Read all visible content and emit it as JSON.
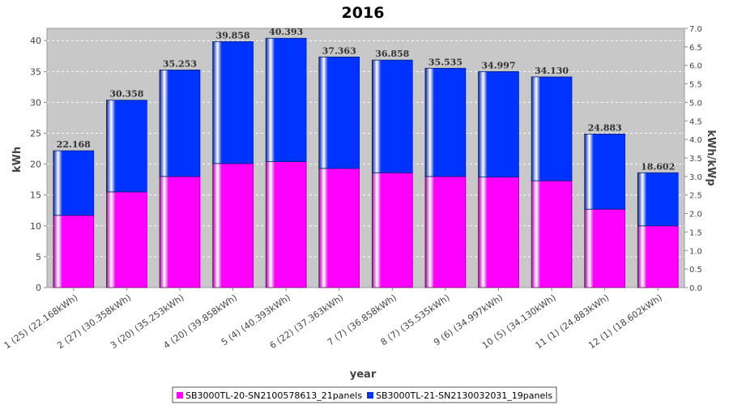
{
  "chart_data": {
    "type": "bar",
    "stacked": true,
    "title": "2016",
    "xlabel": "year",
    "ylabel": "kWh",
    "y2label": "kWh/kWp",
    "ylim": [
      0,
      42
    ],
    "y2lim": [
      0,
      7.0
    ],
    "yticks": [
      0,
      5,
      10,
      15,
      20,
      25,
      30,
      35,
      40
    ],
    "y2ticks": [
      "0.0",
      "0.5",
      "1.0",
      "1.5",
      "2.0",
      "2.5",
      "3.0",
      "3.5",
      "4.0",
      "4.5",
      "5.0",
      "5.5",
      "6.0",
      "6.5",
      "7.0"
    ],
    "grid": true,
    "legend_position": "bottom",
    "categories": [
      "1 (25)  (22.168kWh)",
      "2 (27)  (30.358kWh)",
      "3 (20)  (35.253kWh)",
      "4 (20)  (39.858kWh)",
      "5 (4)  (40.393kWh)",
      "6 (22)  (37.363kWh)",
      "7 (7)  (36.858kWh)",
      "8 (7)  (35.535kWh)",
      "9 (6)  (34.997kWh)",
      "10 (5)  (34.130kWh)",
      "11 (1)  (24.883kWh)",
      "12 (1)  (18.602kWh)"
    ],
    "series": [
      {
        "name": "SB3000TL-20-SN2100578613_21panels",
        "color": "#ff00ff",
        "values": [
          11.7,
          15.5,
          18.0,
          20.1,
          20.4,
          19.3,
          18.6,
          18.0,
          17.9,
          17.3,
          12.7,
          10.0
        ]
      },
      {
        "name": "SB3000TL-21-SN2130032031_19panels",
        "color": "#0033ff",
        "values": [
          10.468,
          14.858,
          17.253,
          19.758,
          19.993,
          18.063,
          18.258,
          17.535,
          17.097,
          16.83,
          12.183,
          8.602
        ]
      }
    ],
    "totals": [
      "22.168",
      "30.358",
      "35.253",
      "39.858",
      "40.393",
      "37.363",
      "36.858",
      "35.535",
      "34.997",
      "34.130",
      "24.883",
      "18.602"
    ]
  }
}
